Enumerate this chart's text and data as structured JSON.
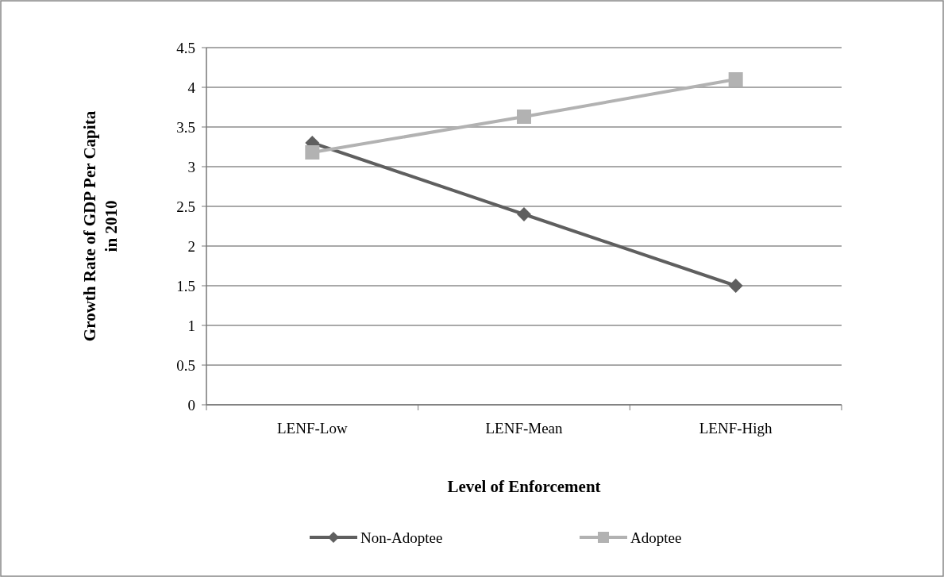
{
  "chart_data": {
    "type": "line",
    "xlabel": "Level of Enforcement",
    "ylabel": "Growth Rate of GDP Per Capita in 2010",
    "categories": [
      "LENF-Low",
      "LENF-Mean",
      "LENF-High"
    ],
    "series": [
      {
        "name": "Non-Adoptee",
        "color": "#5f5f5f",
        "marker": "diamond",
        "values": [
          3.3,
          2.4,
          1.5
        ]
      },
      {
        "name": "Adoptee",
        "color": "#b2b2b2",
        "marker": "square",
        "values": [
          3.18,
          3.63,
          4.1
        ]
      }
    ],
    "ylim": [
      0,
      4.5
    ],
    "yticks": [
      0,
      0.5,
      1,
      1.5,
      2,
      2.5,
      3,
      3.5,
      4,
      4.5
    ],
    "grid": "y",
    "legend": "bottom"
  }
}
